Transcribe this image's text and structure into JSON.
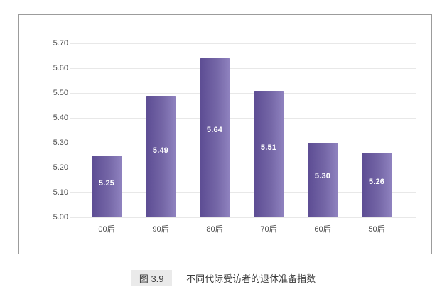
{
  "chart_data": {
    "type": "bar",
    "categories": [
      "00后",
      "90后",
      "80后",
      "70后",
      "60后",
      "50后"
    ],
    "values": [
      5.25,
      5.49,
      5.64,
      5.51,
      5.3,
      5.26
    ],
    "value_labels": [
      "5.25",
      "5.49",
      "5.64",
      "5.51",
      "5.30",
      "5.26"
    ],
    "title": "不同代际受访者的退休准备指数",
    "figure_label": "图 3.9",
    "xlabel": "",
    "ylabel": "",
    "ylim": [
      5.0,
      5.7
    ],
    "ytick_step": 0.1,
    "yticks": [
      "5.70",
      "5.60",
      "5.50",
      "5.40",
      "5.30",
      "5.20",
      "5.10",
      "5.00"
    ],
    "grid": true,
    "legend": "none"
  },
  "caption": {
    "figure_label": "图 3.9",
    "title": "不同代际受访者的退休准备指数"
  },
  "colors": {
    "bar_gradient_start": "#5c4c93",
    "bar_gradient_mid": "#7466a6",
    "bar_gradient_end": "#9083c0",
    "gridline": "#e8e8e8",
    "axis_text": "#4f4f4f",
    "frame_border": "#9c9c9c",
    "value_label": "#ffffff",
    "caption_box_bg": "#eaeaea",
    "caption_text": "#3d3d3d"
  }
}
